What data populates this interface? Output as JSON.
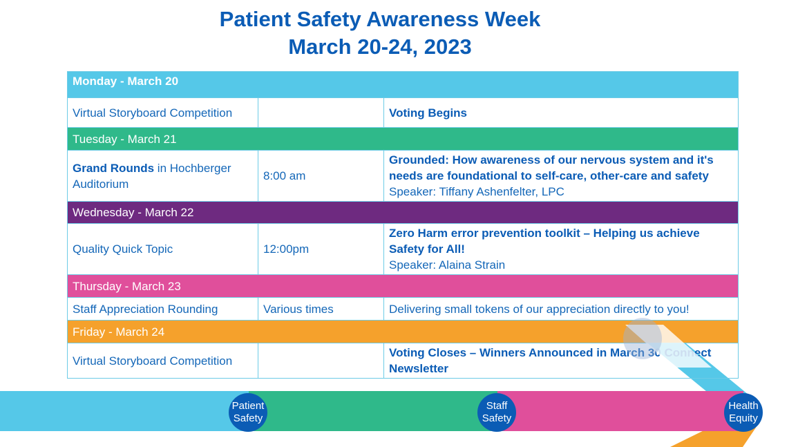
{
  "title": {
    "line1": "Patient Safety Awareness Week",
    "line2": "March 20-24, 2023"
  },
  "colors": {
    "monday": "#55c8e8",
    "tuesday": "#2fb98a",
    "wednesday": "#6e2a80",
    "thursday": "#e04f9b",
    "friday": "#f5a12c",
    "text": "#0b5cb5"
  },
  "days": [
    {
      "header": "Monday - March 20",
      "event": "Virtual Storyboard Competition",
      "time": "",
      "detail_bold": "Voting Begins"
    },
    {
      "header": "Tuesday - March 21",
      "event_bold": "Grand Rounds",
      "event": " in Hochberger Auditorium",
      "time": "8:00 am",
      "detail_bold": "Grounded: How awareness of our nervous system and it's needs are foundational to self-care, other-care and safety",
      "speaker": "Speaker: Tiffany Ashenfelter, LPC"
    },
    {
      "header": "Wednesday - March 22",
      "event": "Quality Quick Topic",
      "time": "12:00pm",
      "detail_bold": "Zero Harm error prevention toolkit – Helping us achieve Safety for All!",
      "speaker": "Speaker: Alaina Strain"
    },
    {
      "header": "Thursday - March 23",
      "event": "Staff Appreciation Rounding",
      "time": "Various times",
      "detail": "Delivering small tokens of our appreciation directly to you!"
    },
    {
      "header": "Friday - March 24",
      "event": "Virtual Storyboard Competition",
      "time": "",
      "detail_bold": "Voting Closes – Winners Announced in March 30 Connect Newsletter"
    }
  ],
  "pillars": [
    {
      "line1": "Patient",
      "line2": "Safety"
    },
    {
      "line1": "Staff",
      "line2": "Safety"
    },
    {
      "line1": "Health",
      "line2": "Equity"
    }
  ]
}
